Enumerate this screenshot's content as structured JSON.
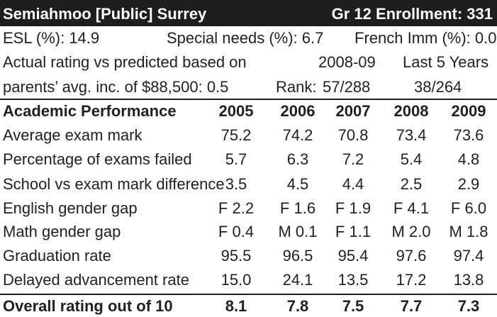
{
  "header": {
    "school": "Semiahmoo [Public] Surrey",
    "enrollment": "Gr 12 Enrollment: 331"
  },
  "info": {
    "esl": "ESL (%): 14.9",
    "special_needs": "Special needs (%): 6.7",
    "french_imm": "French Imm (%): 0.0",
    "rating_line1": "Actual rating vs predicted based on",
    "rating_line2": "parents’ avg. inc. of $88,500: 0.5",
    "period1": "2008-09",
    "period2": "Last 5 Years",
    "rank_label": "Rank:",
    "rank1": "57/288",
    "rank2": "38/264"
  },
  "table": {
    "title": "Academic Performance",
    "years": [
      "2005",
      "2006",
      "2007",
      "2008",
      "2009"
    ],
    "rows": [
      {
        "label": "Average exam mark",
        "values": [
          "75.2",
          "74.2",
          "70.8",
          "73.4",
          "73.6"
        ]
      },
      {
        "label": "Percentage of exams failed",
        "values": [
          "5.7",
          "6.3",
          "7.2",
          "5.4",
          "4.8"
        ]
      },
      {
        "label": "School vs exam mark difference",
        "values": [
          "3.5",
          "4.5",
          "4.4",
          "2.5",
          "2.9"
        ]
      },
      {
        "label": "English gender gap",
        "values": [
          "F 2.2",
          "F 1.6",
          "F 1.9",
          "F 4.1",
          "F 6.0"
        ]
      },
      {
        "label": "Math gender gap",
        "values": [
          "F 0.4",
          "M 0.1",
          "F 1.1",
          "M 2.0",
          "M 1.8"
        ]
      },
      {
        "label": "Graduation rate",
        "values": [
          "95.5",
          "96.5",
          "95.4",
          "97.6",
          "97.4"
        ]
      },
      {
        "label": "Delayed advancement rate",
        "values": [
          "15.0",
          "24.1",
          "13.5",
          "17.2",
          "13.8"
        ]
      }
    ],
    "overall": {
      "label": "Overall rating out of 10",
      "values": [
        "8.1",
        "7.8",
        "7.5",
        "7.7",
        "7.3"
      ]
    }
  }
}
